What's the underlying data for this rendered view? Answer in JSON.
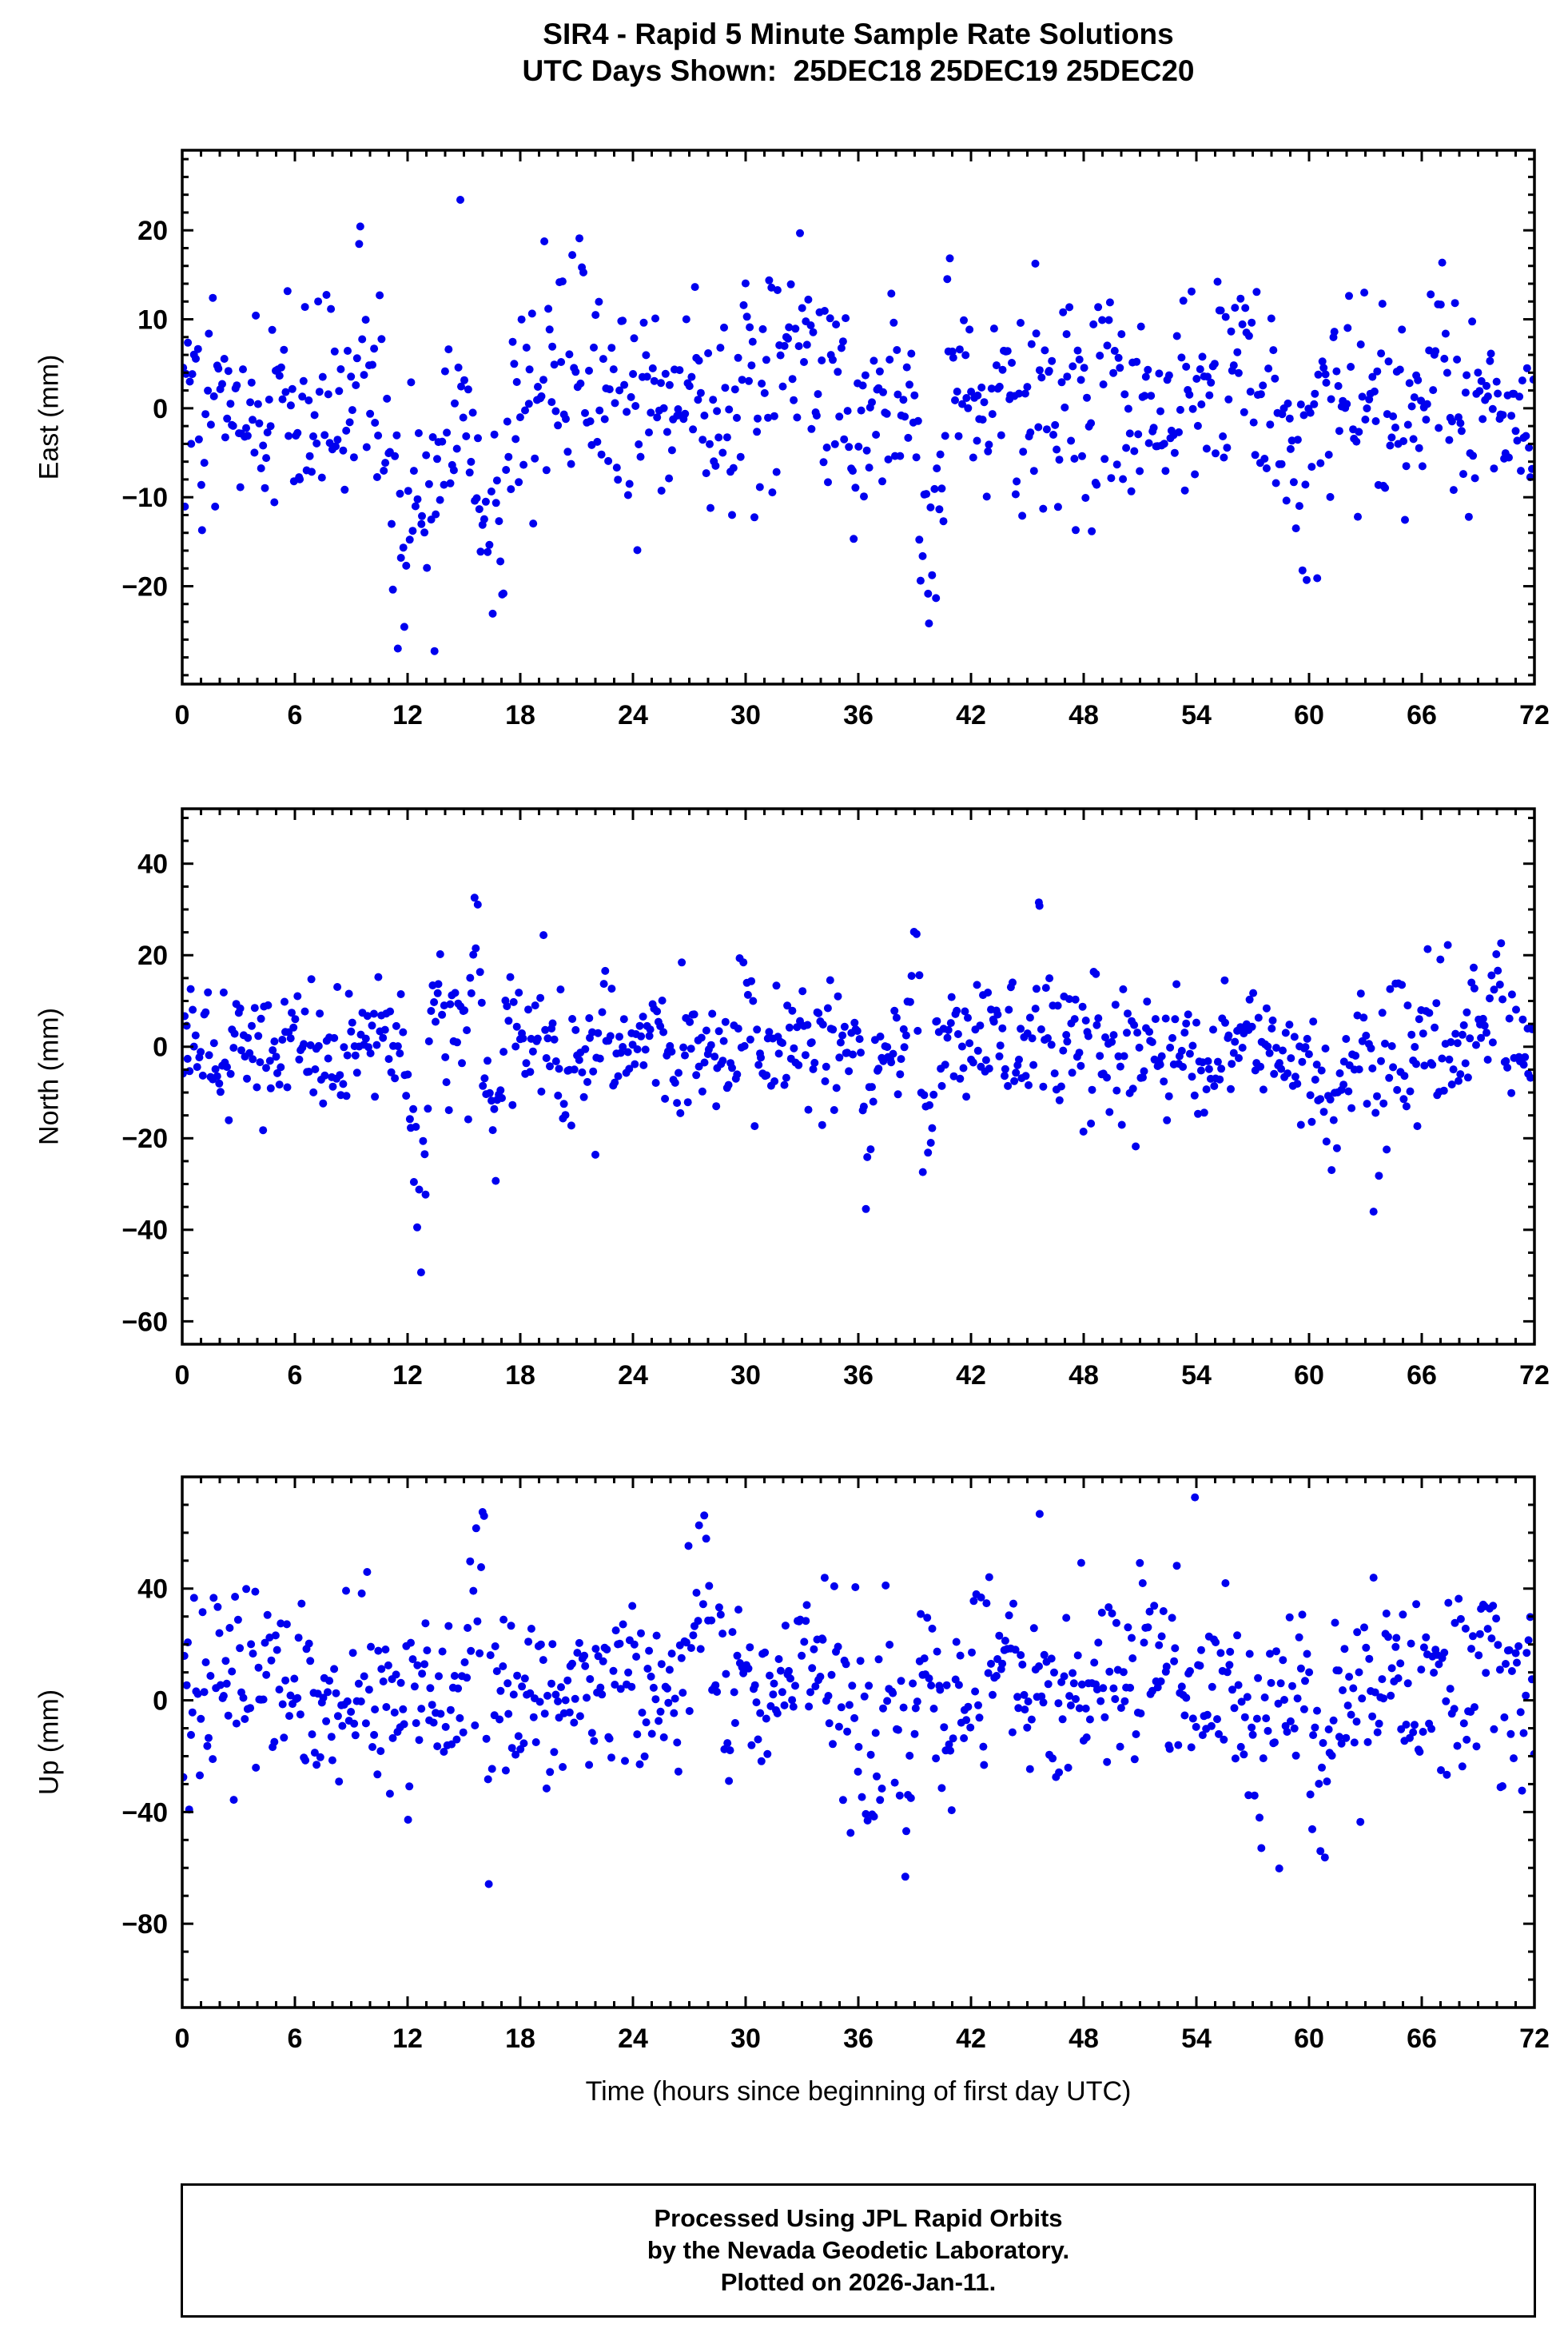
{
  "title": {
    "line1": "SIR4 - Rapid 5 Minute Sample Rate Solutions",
    "line2": "UTC Days Shown:  25DEC18 25DEC19 25DEC20"
  },
  "footer": {
    "lines": [
      "Processed Using JPL Rapid Orbits",
      "by the Nevada Geodetic Laboratory.",
      "Plotted on 2026-Jan-11."
    ]
  },
  "chart_data": {
    "type": "scatter",
    "marker": "circle",
    "point_color": "#0000EE",
    "frame_color": "#000000",
    "x_axis": {
      "label": "Time (hours since beginning of first day UTC)",
      "min": 0,
      "max": 72,
      "major_tick": 6,
      "minor_tick": 1,
      "tick_labels": [
        0,
        6,
        12,
        18,
        24,
        30,
        36,
        42,
        48,
        54,
        60,
        66,
        72
      ]
    },
    "panels": [
      {
        "name": "east",
        "ylabel": "East (mm)",
        "ylim": [
          -31,
          29
        ],
        "yticks": [
          -20,
          -10,
          0,
          10,
          20
        ],
        "minor_tick": 2,
        "seed": 42,
        "n": 830,
        "mean": 0,
        "std": 6,
        "events": [
          {
            "t": 9.5,
            "w": 0.25,
            "amp": 26
          },
          {
            "t": 11.6,
            "w": 0.7,
            "amp": -26
          },
          {
            "t": 13.2,
            "w": 0.5,
            "amp": -16
          },
          {
            "t": 16.6,
            "w": 0.9,
            "amp": -22
          },
          {
            "t": 17.6,
            "w": 0.2,
            "amp": 16
          },
          {
            "t": 21.0,
            "w": 1.5,
            "amp": 7
          },
          {
            "t": 30.0,
            "w": 0.3,
            "amp": 16
          },
          {
            "t": 33.0,
            "w": 0.6,
            "amp": 12
          },
          {
            "t": 36.0,
            "w": 0.8,
            "amp": -8
          },
          {
            "t": 39.8,
            "w": 0.9,
            "amp": -22
          },
          {
            "t": 41.5,
            "w": 0.8,
            "amp": 8
          },
          {
            "t": 56.5,
            "w": 0.9,
            "amp": 12
          },
          {
            "t": 59.5,
            "w": 0.5,
            "amp": -12
          },
          {
            "t": 66.8,
            "w": 0.6,
            "amp": 12
          }
        ]
      },
      {
        "name": "north",
        "ylabel": "North (mm)",
        "ylim": [
          -65,
          52
        ],
        "yticks": [
          -60,
          -40,
          -20,
          0,
          20,
          40
        ],
        "minor_tick": 5,
        "seed": 77,
        "n": 830,
        "mean": 0,
        "std": 7,
        "events": [
          {
            "t": 12.6,
            "w": 0.5,
            "amp": -52
          },
          {
            "t": 13.4,
            "w": 0.4,
            "amp": 26
          },
          {
            "t": 15.6,
            "w": 0.25,
            "amp": 40
          },
          {
            "t": 16.6,
            "w": 0.3,
            "amp": -40
          },
          {
            "t": 17.8,
            "w": 0.6,
            "amp": 10
          },
          {
            "t": 20.5,
            "w": 0.4,
            "amp": -20
          },
          {
            "t": 30.0,
            "w": 0.3,
            "amp": 24
          },
          {
            "t": 36.6,
            "w": 0.3,
            "amp": -30
          },
          {
            "t": 39.0,
            "w": 0.25,
            "amp": 44
          },
          {
            "t": 39.7,
            "w": 0.3,
            "amp": -40
          },
          {
            "t": 45.6,
            "w": 0.2,
            "amp": 32
          },
          {
            "t": 54.6,
            "w": 0.5,
            "amp": -16
          },
          {
            "t": 61.0,
            "w": 0.6,
            "amp": -28
          },
          {
            "t": 63.5,
            "w": 0.25,
            "amp": -36
          },
          {
            "t": 70.0,
            "w": 0.5,
            "amp": 20
          }
        ]
      },
      {
        "name": "up",
        "ylabel": "Up (mm)",
        "ylim": [
          -110,
          80
        ],
        "yticks": [
          -80,
          -40,
          0,
          40
        ],
        "minor_tick": 10,
        "seed": 123,
        "n": 830,
        "mean": 4,
        "std": 17,
        "events": [
          {
            "t": 3.5,
            "w": 1.2,
            "amp": 18
          },
          {
            "t": 15.9,
            "w": 0.5,
            "amp": 60
          },
          {
            "t": 16.3,
            "w": 0.15,
            "amp": -100
          },
          {
            "t": 27.6,
            "w": 0.7,
            "amp": 48
          },
          {
            "t": 33.0,
            "w": 1.0,
            "amp": 14
          },
          {
            "t": 36.8,
            "w": 0.6,
            "amp": -48
          },
          {
            "t": 38.6,
            "w": 0.3,
            "amp": -78
          },
          {
            "t": 44.0,
            "w": 0.6,
            "amp": 34
          },
          {
            "t": 51.5,
            "w": 1.2,
            "amp": 22
          },
          {
            "t": 57.0,
            "w": 0.8,
            "amp": -30
          },
          {
            "t": 60.6,
            "w": 0.5,
            "amp": -60
          },
          {
            "t": 69.5,
            "w": 1.0,
            "amp": 24
          }
        ]
      }
    ]
  }
}
